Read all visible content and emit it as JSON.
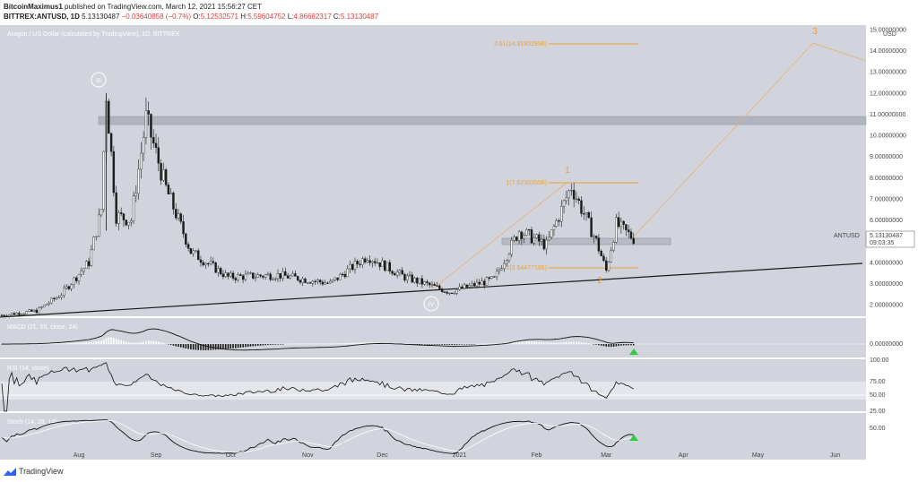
{
  "header": {
    "line1_user": "BitcoinMaximus1",
    "line1_rest": " published on TradingView.com, March 12, 2021 15:56:27 CET",
    "symbol": "BITTREX:ANTUSD, 1D",
    "last": "5.13130487",
    "change": "−0.03640858 (−0.7%)",
    "o_label": "O:",
    "o": "5.12532571",
    "h_label": "H:",
    "h": "5.59604752",
    "l_label": "L:",
    "l": "4.86682317",
    "c_label": "C:",
    "c": "5.13130487"
  },
  "chart": {
    "pane_title": "Aragon / US Dollar (calculated by TradingView), 1D, BITTREX",
    "currency": "USD",
    "price_label_symbol": "ANTUSD",
    "price_label_value": "5.13130487",
    "price_label_timer": "09:03:35",
    "wave_III": "III",
    "wave_IV": "IV",
    "wave_1": "1",
    "wave_2": "2",
    "wave_3": "3",
    "fib_1_label": "1(7.62303556)",
    "fib_0_label": "0(3.54477196)",
    "fib_261_label": "2.61(14.31952996)",
    "macd_title": "MACD (21, 50, close, 24)",
    "rsi_title": "RSI (14, close)",
    "stoch_title": "Stoch (14, 28, 14)",
    "macd_axis": "0.00000000",
    "rsi_axis": [
      "100.00",
      "75.00",
      "50.00",
      "25.00"
    ],
    "stoch_axis": "50.00",
    "colors": {
      "fib": "#f0a030",
      "bg": "#d1d4dc",
      "candle": "#1a1a1a",
      "up_arrow": "#2ecc40"
    }
  },
  "chart_data": {
    "type": "candlestick",
    "title": "Aragon / US Dollar (calculated by TradingView), 1D, BITTREX",
    "y_ticks": [
      "15.00000000",
      "14.00000000",
      "13.00000000",
      "12.00000000",
      "11.00000000",
      "10.00000000",
      "9.00000000",
      "8.00000000",
      "7.00000000",
      "6.00000000",
      "5.00000000",
      "4.00000000",
      "3.00000000",
      "2.00000000"
    ],
    "x_ticks": [
      "Aug",
      "Sep",
      "Oct",
      "Nov",
      "Dec",
      "2021",
      "Feb",
      "Mar",
      "Apr",
      "May",
      "Jun"
    ],
    "ylim": [
      1.0,
      15.2
    ],
    "resistance_zone": [
      10.45,
      10.85
    ],
    "support_zone": [
      4.85,
      5.1
    ],
    "fib_levels": [
      {
        "label": "1(7.62303556)",
        "value": 7.62303556
      },
      {
        "label": "0(3.54477196)",
        "value": 3.54477196
      },
      {
        "label": "2.61(14.31952996)",
        "value": 14.31952996
      }
    ],
    "price_path": [
      {
        "date": "2020-07-01",
        "close": 1.5
      },
      {
        "date": "2020-07-15",
        "close": 1.7
      },
      {
        "date": "2020-07-25",
        "close": 2.5
      },
      {
        "date": "2020-08-05",
        "close": 4.0
      },
      {
        "date": "2020-08-10",
        "close": 6.5
      },
      {
        "date": "2020-08-12",
        "close": 12.0
      },
      {
        "date": "2020-08-16",
        "close": 6.2
      },
      {
        "date": "2020-08-22",
        "close": 6.0
      },
      {
        "date": "2020-08-28",
        "close": 10.8
      },
      {
        "date": "2020-09-05",
        "close": 7.5
      },
      {
        "date": "2020-09-15",
        "close": 4.5
      },
      {
        "date": "2020-09-30",
        "close": 3.3
      },
      {
        "date": "2020-10-20",
        "close": 3.4
      },
      {
        "date": "2020-11-10",
        "close": 3.0
      },
      {
        "date": "2020-11-25",
        "close": 4.3
      },
      {
        "date": "2020-12-10",
        "close": 3.3
      },
      {
        "date": "2020-12-28",
        "close": 2.6
      },
      {
        "date": "2021-01-15",
        "close": 3.2
      },
      {
        "date": "2021-01-25",
        "close": 5.5
      },
      {
        "date": "2021-02-05",
        "close": 4.8
      },
      {
        "date": "2021-02-15",
        "close": 7.6
      },
      {
        "date": "2021-02-25",
        "close": 5.0
      },
      {
        "date": "2021-03-01",
        "close": 3.6
      },
      {
        "date": "2021-03-05",
        "close": 5.8
      },
      {
        "date": "2021-03-12",
        "close": 5.13
      }
    ],
    "projection": [
      {
        "date": "2021-03-12",
        "value": 5.13
      },
      {
        "date": "2021-05-25",
        "value": 14.4
      },
      {
        "date": "2021-06-12",
        "value": 13.2
      }
    ],
    "trendline": [
      {
        "date": "2020-07-01",
        "value": 1.3
      },
      {
        "date": "2021-06-12",
        "value": 3.7
      }
    ]
  }
}
